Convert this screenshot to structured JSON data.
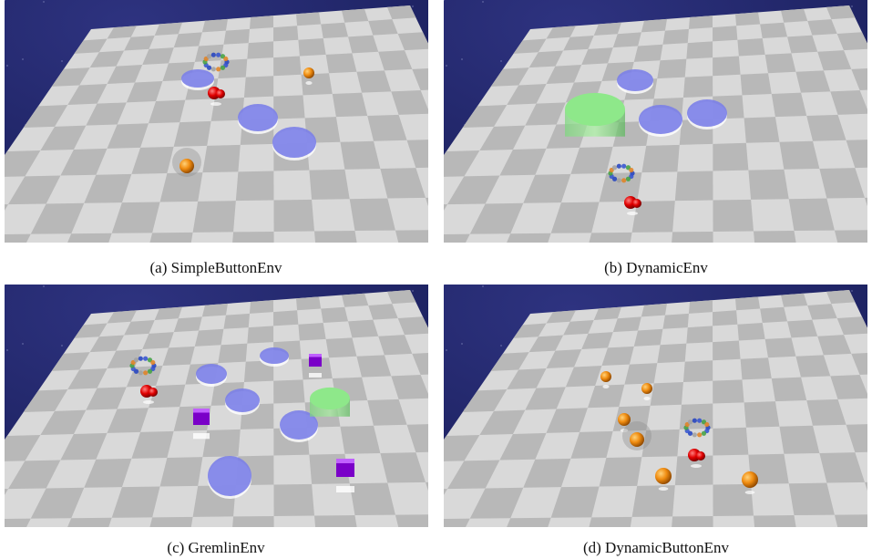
{
  "panels": [
    {
      "caption": "(a) SimpleButtonEnv"
    },
    {
      "caption": "(b) DynamicEnv"
    },
    {
      "caption": "(c) GremlinEnv"
    },
    {
      "caption": "(d) DynamicButtonEnv"
    }
  ]
}
